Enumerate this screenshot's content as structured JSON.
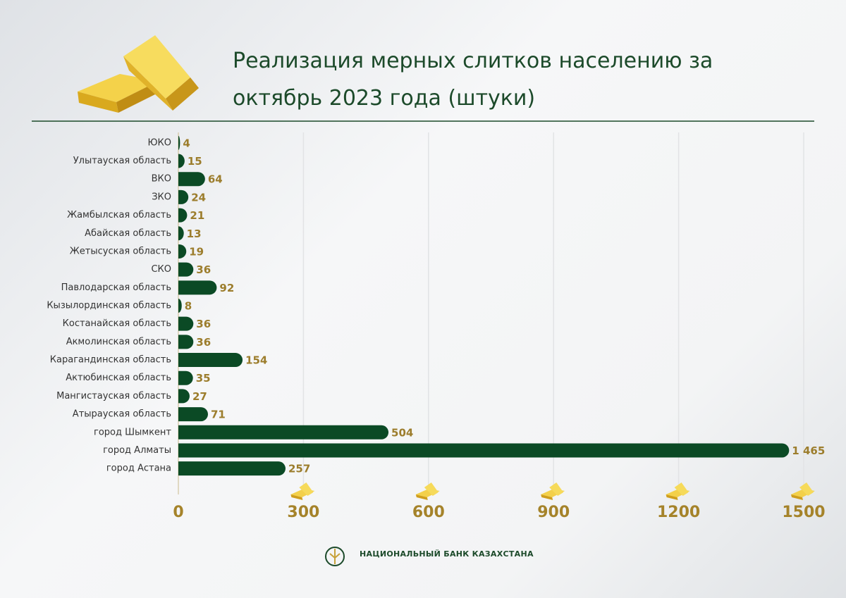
{
  "chart_data": {
    "type": "hbar",
    "title": "Реализация мерных слитков населению за октябрь 2023 года (штуки)",
    "categories": [
      "ЮКО",
      "Улытауская  область",
      "ВКО",
      "ЗКО",
      "Жамбылская  область",
      "Абайская  область",
      "Жетысуская  область",
      "СКО",
      "Павлодарская область",
      "Кызылординская область",
      "Костанайская область",
      "Акмолинская область",
      "Карагандинская область",
      "Актюбинская область",
      "Мангистауская область",
      "Атырауская область",
      "город Шымкент",
      "город Алматы",
      "город Астана"
    ],
    "values": [
      4,
      15,
      64,
      24,
      21,
      13,
      19,
      36,
      92,
      8,
      36,
      36,
      154,
      35,
      27,
      71,
      504,
      1465,
      257
    ],
    "value_labels": [
      "4",
      "15",
      "64",
      "24",
      "21",
      "13",
      "19",
      "36",
      "92",
      "8",
      "36",
      "36",
      "154",
      "35",
      "27",
      "71",
      "504",
      "1 465",
      "257"
    ],
    "color": "#0b4a25",
    "xlim": [
      0,
      1500
    ],
    "xticks": [
      0,
      300,
      600,
      900,
      1200,
      1500
    ],
    "grid": true
  },
  "footer": "НАЦИОНАЛЬНЫЙ БАНК КАЗАХСТАНА"
}
